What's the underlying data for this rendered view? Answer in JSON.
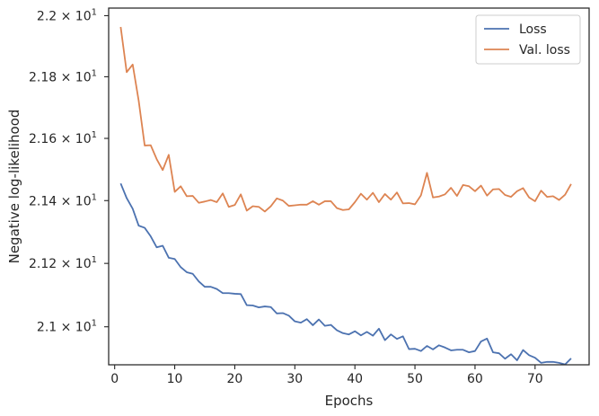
{
  "chart_data": {
    "type": "line",
    "xlabel": "Epochs",
    "ylabel": "Negative log-likelihood",
    "xlim": [
      -1,
      79
    ],
    "ylim": [
      20.881,
      22.025
    ],
    "xticks": [
      0,
      10,
      20,
      30,
      40,
      50,
      60,
      70
    ],
    "yticks": [
      {
        "value": 21.0,
        "base": "2.1",
        "exp": "1"
      },
      {
        "value": 21.2,
        "base": "2.12",
        "exp": "1"
      },
      {
        "value": 21.4,
        "base": "2.14",
        "exp": "1"
      },
      {
        "value": 21.6,
        "base": "2.16",
        "exp": "1"
      },
      {
        "value": 21.8,
        "base": "2.18",
        "exp": "1"
      },
      {
        "value": 22.0,
        "base": "2.2",
        "exp": "1"
      }
    ],
    "y_scale": "log",
    "grid": false,
    "legend": {
      "position": "top-right",
      "entries": [
        "Loss",
        "Val. loss"
      ]
    },
    "x": [
      1,
      2,
      3,
      4,
      5,
      6,
      7,
      8,
      9,
      10,
      11,
      12,
      13,
      14,
      15,
      16,
      17,
      18,
      19,
      20,
      21,
      22,
      23,
      24,
      25,
      26,
      27,
      28,
      29,
      30,
      31,
      32,
      33,
      34,
      35,
      36,
      37,
      38,
      39,
      40,
      41,
      42,
      43,
      44,
      45,
      46,
      47,
      48,
      49,
      50,
      51,
      52,
      53,
      54,
      55,
      56,
      57,
      58,
      59,
      60,
      61,
      62,
      63,
      64,
      65,
      66,
      67,
      68,
      69,
      70,
      71,
      72,
      73,
      74,
      75,
      76
    ],
    "series": [
      {
        "name": "Loss",
        "color": "#4c72b0",
        "values": [
          21.455,
          21.408,
          21.374,
          21.32,
          21.313,
          21.286,
          21.251,
          21.256,
          21.218,
          21.214,
          21.188,
          21.172,
          21.167,
          21.143,
          21.126,
          21.126,
          21.119,
          21.106,
          21.106,
          21.104,
          21.103,
          21.068,
          21.067,
          21.061,
          21.064,
          21.062,
          21.042,
          21.043,
          21.035,
          21.017,
          21.013,
          21.024,
          21.005,
          21.023,
          21.003,
          21.006,
          20.989,
          20.98,
          20.976,
          20.986,
          20.973,
          20.984,
          20.972,
          20.994,
          20.958,
          20.976,
          20.962,
          20.97,
          20.93,
          20.931,
          20.924,
          20.94,
          20.929,
          20.942,
          20.935,
          20.926,
          20.928,
          20.928,
          20.92,
          20.924,
          20.954,
          20.963,
          20.92,
          20.917,
          20.9,
          20.914,
          20.895,
          20.927,
          20.911,
          20.903,
          20.887,
          20.89,
          20.89,
          20.887,
          20.882,
          20.901
        ]
      },
      {
        "name": "Val. loss",
        "color": "#dd8452",
        "values": [
          21.963,
          21.815,
          21.84,
          21.722,
          21.577,
          21.578,
          21.533,
          21.498,
          21.547,
          21.428,
          21.446,
          21.414,
          21.415,
          21.393,
          21.397,
          21.402,
          21.395,
          21.423,
          21.38,
          21.386,
          21.42,
          21.368,
          21.382,
          21.38,
          21.365,
          21.382,
          21.407,
          21.4,
          21.383,
          21.385,
          21.387,
          21.387,
          21.398,
          21.387,
          21.398,
          21.398,
          21.376,
          21.37,
          21.372,
          21.395,
          21.422,
          21.403,
          21.425,
          21.395,
          21.421,
          21.403,
          21.426,
          21.391,
          21.392,
          21.388,
          21.417,
          21.489,
          21.41,
          21.413,
          21.42,
          21.441,
          21.415,
          21.45,
          21.446,
          21.43,
          21.448,
          21.416,
          21.436,
          21.437,
          21.418,
          21.412,
          21.43,
          21.44,
          21.41,
          21.398,
          21.432,
          21.412,
          21.414,
          21.402,
          21.419,
          21.453
        ]
      }
    ]
  }
}
